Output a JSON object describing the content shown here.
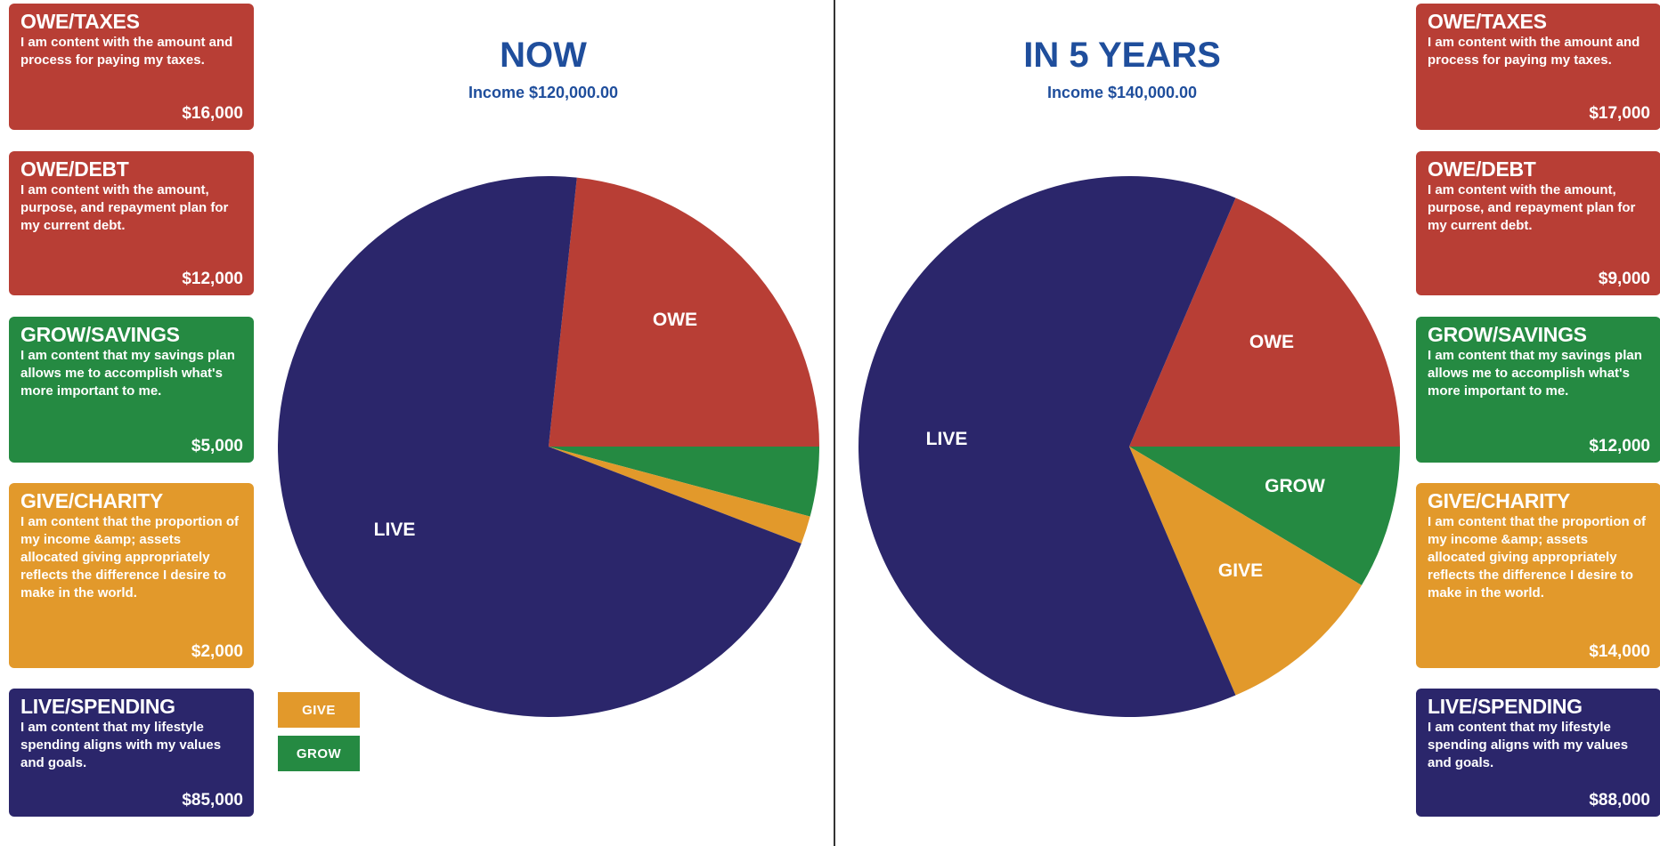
{
  "colors": {
    "owe": "#b83e35",
    "grow": "#258a42",
    "give": "#e2992b",
    "live": "#2b266b",
    "title": "#1f4e9c"
  },
  "now": {
    "title": "NOW",
    "income": "Income $120,000.00"
  },
  "future": {
    "title": "IN 5 YEARS",
    "income": "Income $140,000.00"
  },
  "cards_left": [
    {
      "category": "OWE/TAXES",
      "description": "I am content with the amount and process for paying my taxes.",
      "amount": "$16,000"
    },
    {
      "category": "OWE/DEBT",
      "description": "I am content with the amount, purpose, and repayment plan for my current debt.",
      "amount": "$12,000"
    },
    {
      "category": "GROW/SAVINGS",
      "description": "I am content that my savings plan allows me to accomplish what's more important to me.",
      "amount": "$5,000"
    },
    {
      "category": "GIVE/CHARITY",
      "description": "I am content that the proportion of my income &amp; assets allocated giving appropriately reflects the difference I desire to make in the world.",
      "amount": "$2,000"
    },
    {
      "category": "LIVE/SPENDING",
      "description": "I am content that my lifestyle spending aligns with my values and goals.",
      "amount": "$85,000"
    }
  ],
  "cards_right": [
    {
      "category": "OWE/TAXES",
      "description": "I am content with the amount and process for paying my taxes.",
      "amount": "$17,000"
    },
    {
      "category": "OWE/DEBT",
      "description": "I am content with the amount, purpose, and repayment plan for my current debt.",
      "amount": "$9,000"
    },
    {
      "category": "GROW/SAVINGS",
      "description": "I am content that my savings plan allows me to accomplish what's more important to me.",
      "amount": "$12,000"
    },
    {
      "category": "GIVE/CHARITY",
      "description": "I am content that the proportion of my income &amp; assets allocated giving appropriately reflects the difference I desire to make in the world.",
      "amount": "$14,000"
    },
    {
      "category": "LIVE/SPENDING",
      "description": "I am content that my lifestyle spending aligns with my values and goals.",
      "amount": "$88,000"
    }
  ],
  "legend": {
    "give": "GIVE",
    "grow": "GROW"
  },
  "chart_data": [
    {
      "type": "pie",
      "title": "NOW",
      "subtitle": "Income $120,000.00",
      "categories": [
        "OWE",
        "GROW",
        "GIVE",
        "LIVE"
      ],
      "values": [
        28000,
        5000,
        2000,
        85000
      ],
      "slice_labels": [
        "OWE",
        "",
        "",
        "LIVE"
      ],
      "colors": [
        "#b83e35",
        "#258a42",
        "#e2992b",
        "#2b266b"
      ]
    },
    {
      "type": "pie",
      "title": "IN 5 YEARS",
      "subtitle": "Income $140,000.00",
      "categories": [
        "OWE",
        "GROW",
        "GIVE",
        "LIVE"
      ],
      "values": [
        26000,
        12000,
        14000,
        88000
      ],
      "slice_labels": [
        "OWE",
        "GROW",
        "GIVE",
        "LIVE"
      ],
      "colors": [
        "#b83e35",
        "#258a42",
        "#e2992b",
        "#2b266b"
      ]
    }
  ]
}
